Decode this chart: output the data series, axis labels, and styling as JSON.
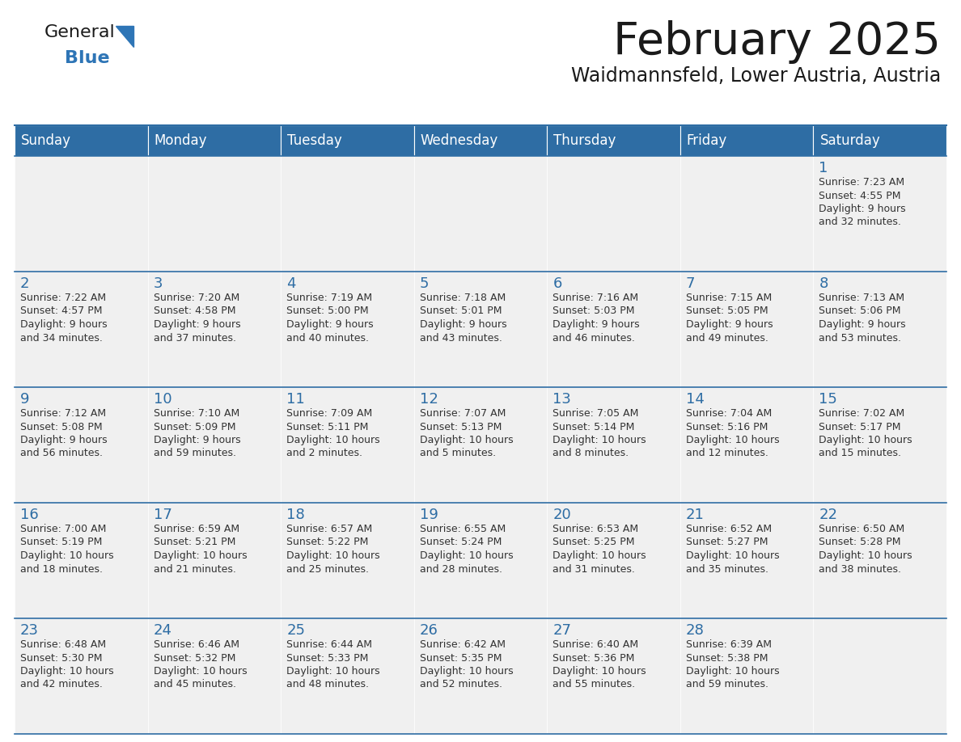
{
  "title": "February 2025",
  "subtitle": "Waidmannsfeld, Lower Austria, Austria",
  "header_bg": "#2E6DA4",
  "header_text": "#FFFFFF",
  "cell_bg": "#F0F0F0",
  "text_color": "#333333",
  "day_num_color": "#2E6DA4",
  "line_color": "#2E6DA4",
  "days_of_week": [
    "Sunday",
    "Monday",
    "Tuesday",
    "Wednesday",
    "Thursday",
    "Friday",
    "Saturday"
  ],
  "logo_color1": "#1a1a1a",
  "logo_color2": "#2E75B6",
  "weeks": [
    [
      {
        "day": "",
        "info": ""
      },
      {
        "day": "",
        "info": ""
      },
      {
        "day": "",
        "info": ""
      },
      {
        "day": "",
        "info": ""
      },
      {
        "day": "",
        "info": ""
      },
      {
        "day": "",
        "info": ""
      },
      {
        "day": "1",
        "info": "Sunrise: 7:23 AM\nSunset: 4:55 PM\nDaylight: 9 hours\nand 32 minutes."
      }
    ],
    [
      {
        "day": "2",
        "info": "Sunrise: 7:22 AM\nSunset: 4:57 PM\nDaylight: 9 hours\nand 34 minutes."
      },
      {
        "day": "3",
        "info": "Sunrise: 7:20 AM\nSunset: 4:58 PM\nDaylight: 9 hours\nand 37 minutes."
      },
      {
        "day": "4",
        "info": "Sunrise: 7:19 AM\nSunset: 5:00 PM\nDaylight: 9 hours\nand 40 minutes."
      },
      {
        "day": "5",
        "info": "Sunrise: 7:18 AM\nSunset: 5:01 PM\nDaylight: 9 hours\nand 43 minutes."
      },
      {
        "day": "6",
        "info": "Sunrise: 7:16 AM\nSunset: 5:03 PM\nDaylight: 9 hours\nand 46 minutes."
      },
      {
        "day": "7",
        "info": "Sunrise: 7:15 AM\nSunset: 5:05 PM\nDaylight: 9 hours\nand 49 minutes."
      },
      {
        "day": "8",
        "info": "Sunrise: 7:13 AM\nSunset: 5:06 PM\nDaylight: 9 hours\nand 53 minutes."
      }
    ],
    [
      {
        "day": "9",
        "info": "Sunrise: 7:12 AM\nSunset: 5:08 PM\nDaylight: 9 hours\nand 56 minutes."
      },
      {
        "day": "10",
        "info": "Sunrise: 7:10 AM\nSunset: 5:09 PM\nDaylight: 9 hours\nand 59 minutes."
      },
      {
        "day": "11",
        "info": "Sunrise: 7:09 AM\nSunset: 5:11 PM\nDaylight: 10 hours\nand 2 minutes."
      },
      {
        "day": "12",
        "info": "Sunrise: 7:07 AM\nSunset: 5:13 PM\nDaylight: 10 hours\nand 5 minutes."
      },
      {
        "day": "13",
        "info": "Sunrise: 7:05 AM\nSunset: 5:14 PM\nDaylight: 10 hours\nand 8 minutes."
      },
      {
        "day": "14",
        "info": "Sunrise: 7:04 AM\nSunset: 5:16 PM\nDaylight: 10 hours\nand 12 minutes."
      },
      {
        "day": "15",
        "info": "Sunrise: 7:02 AM\nSunset: 5:17 PM\nDaylight: 10 hours\nand 15 minutes."
      }
    ],
    [
      {
        "day": "16",
        "info": "Sunrise: 7:00 AM\nSunset: 5:19 PM\nDaylight: 10 hours\nand 18 minutes."
      },
      {
        "day": "17",
        "info": "Sunrise: 6:59 AM\nSunset: 5:21 PM\nDaylight: 10 hours\nand 21 minutes."
      },
      {
        "day": "18",
        "info": "Sunrise: 6:57 AM\nSunset: 5:22 PM\nDaylight: 10 hours\nand 25 minutes."
      },
      {
        "day": "19",
        "info": "Sunrise: 6:55 AM\nSunset: 5:24 PM\nDaylight: 10 hours\nand 28 minutes."
      },
      {
        "day": "20",
        "info": "Sunrise: 6:53 AM\nSunset: 5:25 PM\nDaylight: 10 hours\nand 31 minutes."
      },
      {
        "day": "21",
        "info": "Sunrise: 6:52 AM\nSunset: 5:27 PM\nDaylight: 10 hours\nand 35 minutes."
      },
      {
        "day": "22",
        "info": "Sunrise: 6:50 AM\nSunset: 5:28 PM\nDaylight: 10 hours\nand 38 minutes."
      }
    ],
    [
      {
        "day": "23",
        "info": "Sunrise: 6:48 AM\nSunset: 5:30 PM\nDaylight: 10 hours\nand 42 minutes."
      },
      {
        "day": "24",
        "info": "Sunrise: 6:46 AM\nSunset: 5:32 PM\nDaylight: 10 hours\nand 45 minutes."
      },
      {
        "day": "25",
        "info": "Sunrise: 6:44 AM\nSunset: 5:33 PM\nDaylight: 10 hours\nand 48 minutes."
      },
      {
        "day": "26",
        "info": "Sunrise: 6:42 AM\nSunset: 5:35 PM\nDaylight: 10 hours\nand 52 minutes."
      },
      {
        "day": "27",
        "info": "Sunrise: 6:40 AM\nSunset: 5:36 PM\nDaylight: 10 hours\nand 55 minutes."
      },
      {
        "day": "28",
        "info": "Sunrise: 6:39 AM\nSunset: 5:38 PM\nDaylight: 10 hours\nand 59 minutes."
      },
      {
        "day": "",
        "info": ""
      }
    ]
  ]
}
